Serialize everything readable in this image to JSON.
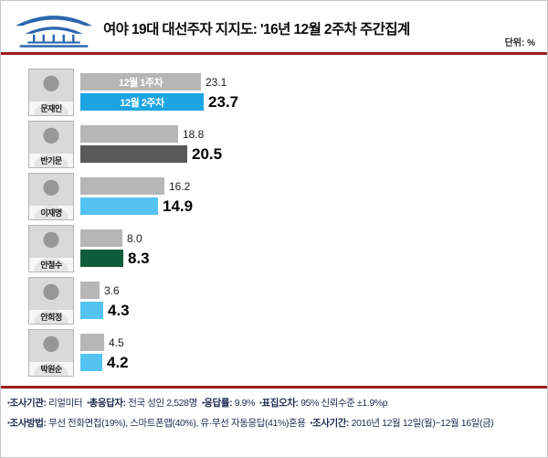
{
  "header": {
    "unit_label": "단위: %",
    "logo_icon": "blue-house-icon"
  },
  "chart_data": {
    "type": "bar",
    "orientation": "horizontal",
    "title": "여야 19대 대선주자 지지도: '16년 12월 2주차 주간집계",
    "unit": "%",
    "xlim": [
      0,
      25
    ],
    "grid": false,
    "legend_position": "inside-first-bars",
    "categories": [
      "문재인",
      "반기문",
      "이재명",
      "안철수",
      "안희정",
      "박원순"
    ],
    "series": [
      {
        "name": "12월 1주차",
        "values": [
          23.1,
          18.8,
          16.2,
          8.0,
          3.6,
          4.5
        ]
      },
      {
        "name": "12월 2주차",
        "values": [
          23.7,
          20.5,
          14.9,
          8.3,
          4.3,
          4.2
        ]
      }
    ],
    "colors": {
      "week1": "#b6b6b6",
      "week2": [
        "#1da4e2",
        "#595959",
        "#55c3f2",
        "#0f5c3c",
        "#55c3f2",
        "#55c3f2"
      ]
    }
  },
  "footer": {
    "bullet": "▪",
    "lines": [
      {
        "segments": [
          {
            "label": "조사기관:",
            "value": "리얼미터"
          },
          {
            "label": "총응답자:",
            "value": "전국 성인 2,528명"
          },
          {
            "label": "응답률:",
            "value": "9.9%"
          },
          {
            "label": "표집오차:",
            "value": "95% 신뢰수준 ±1.9%p"
          }
        ]
      },
      {
        "segments": [
          {
            "label": "조사방법:",
            "value": "무선 전화면접(19%), 스마트폰앱(40%), 유·무선 자동응답(41%)혼용"
          },
          {
            "label": "조사기간:",
            "value": "2016년 12월 12일(월)~12월 16일(금)"
          }
        ]
      }
    ]
  }
}
